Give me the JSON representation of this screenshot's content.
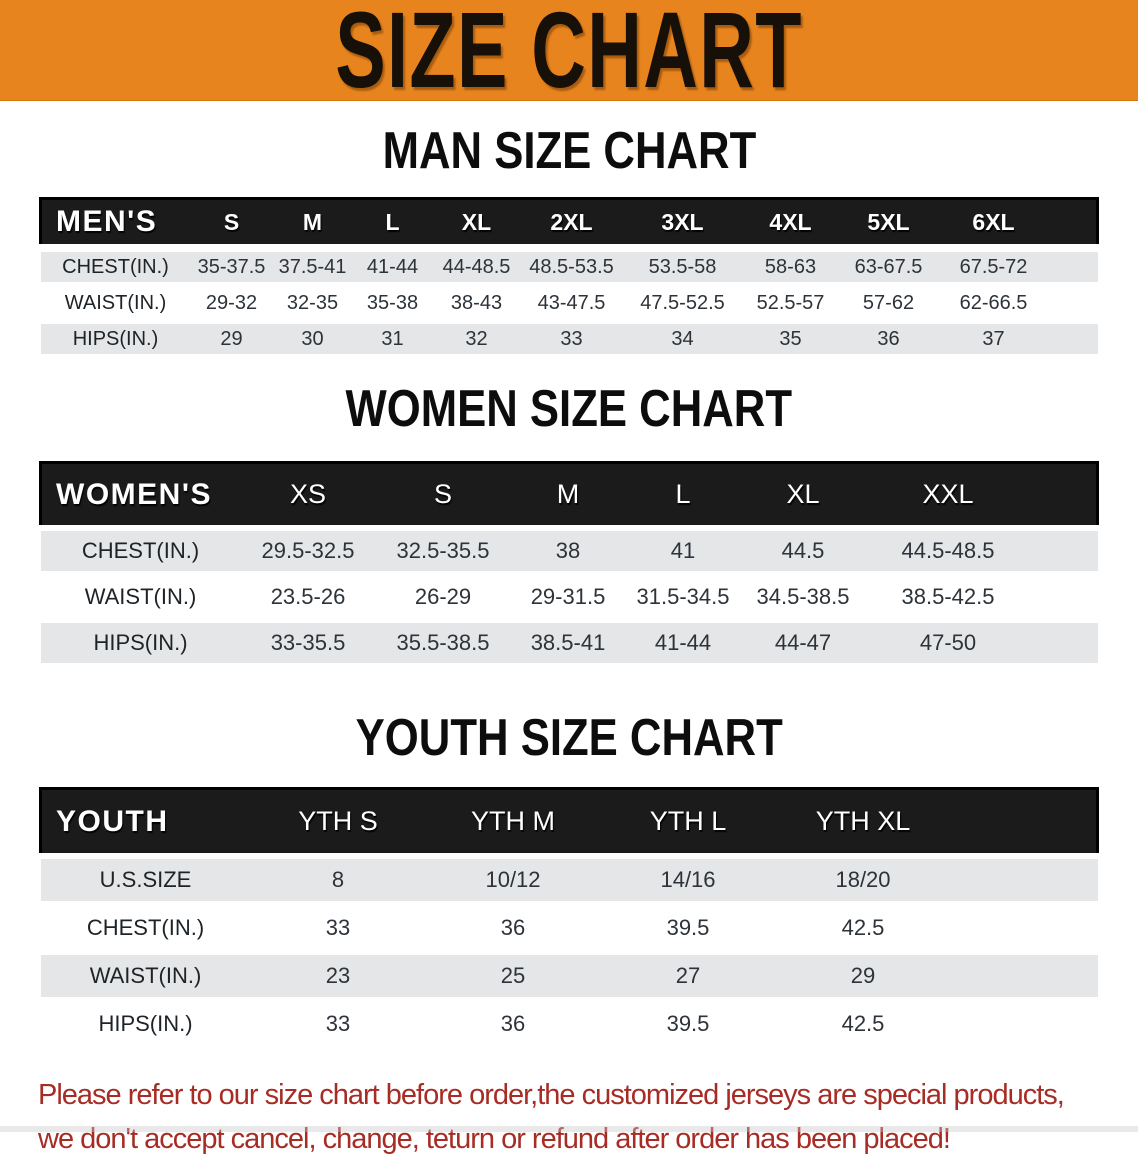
{
  "banner": {
    "title": "SIZE CHART",
    "bg_color": "#E8841E",
    "text_color": "#161008"
  },
  "colors": {
    "table_header_bg": "#1b1b1b",
    "row_shade": "#e4e6e7",
    "disclaimer_red": "#A72C25"
  },
  "sections": [
    {
      "heading": "MAN SIZE CHART",
      "table": {
        "corner_label": "MEN'S",
        "columns": [
          "S",
          "M",
          "L",
          "XL",
          "2XL",
          "3XL",
          "4XL",
          "5XL",
          "6XL"
        ],
        "rows": [
          {
            "label": "CHEST(IN.)",
            "values": [
              "35-37.5",
              "37.5-41",
              "41-44",
              "44-48.5",
              "48.5-53.5",
              "53.5-58",
              "58-63",
              "63-67.5",
              "67.5-72"
            ]
          },
          {
            "label": "WAIST(IN.)",
            "values": [
              "29-32",
              "32-35",
              "35-38",
              "38-43",
              "43-47.5",
              "47.5-52.5",
              "52.5-57",
              "57-62",
              "62-66.5"
            ]
          },
          {
            "label": "HIPS(IN.)",
            "values": [
              "29",
              "30",
              "31",
              "32",
              "33",
              "34",
              "35",
              "36",
              "37"
            ]
          }
        ]
      }
    },
    {
      "heading": "WOMEN SIZE CHART",
      "table": {
        "corner_label": "WOMEN'S",
        "columns": [
          "XS",
          "S",
          "M",
          "L",
          "XL",
          "XXL"
        ],
        "rows": [
          {
            "label": "CHEST(IN.)",
            "values": [
              "29.5-32.5",
              "32.5-35.5",
              "38",
              "41",
              "44.5",
              "44.5-48.5"
            ]
          },
          {
            "label": "WAIST(IN.)",
            "values": [
              "23.5-26",
              "26-29",
              "29-31.5",
              "31.5-34.5",
              "34.5-38.5",
              "38.5-42.5"
            ]
          },
          {
            "label": "HIPS(IN.)",
            "values": [
              "33-35.5",
              "35.5-38.5",
              "38.5-41",
              "41-44",
              "44-47",
              "47-50"
            ]
          }
        ]
      }
    },
    {
      "heading": "YOUTH SIZE CHART",
      "table": {
        "corner_label": "YOUTH",
        "columns": [
          "YTH S",
          "YTH M",
          "YTH L",
          "YTH XL"
        ],
        "rows": [
          {
            "label": "U.S.SIZE",
            "values": [
              "8",
              "10/12",
              "14/16",
              "18/20"
            ]
          },
          {
            "label": "CHEST(IN.)",
            "values": [
              "33",
              "36",
              "39.5",
              "42.5"
            ]
          },
          {
            "label": "WAIST(IN.)",
            "values": [
              "23",
              "25",
              "27",
              "29"
            ]
          },
          {
            "label": "HIPS(IN.)",
            "values": [
              "33",
              "36",
              "39.5",
              "42.5"
            ]
          }
        ]
      }
    }
  ],
  "disclaimer": {
    "line1": "Please refer to our size chart before order,the customized jerseys are special products,",
    "line2": "we don't accept cancel, change, teturn or refund after order has been placed!"
  }
}
